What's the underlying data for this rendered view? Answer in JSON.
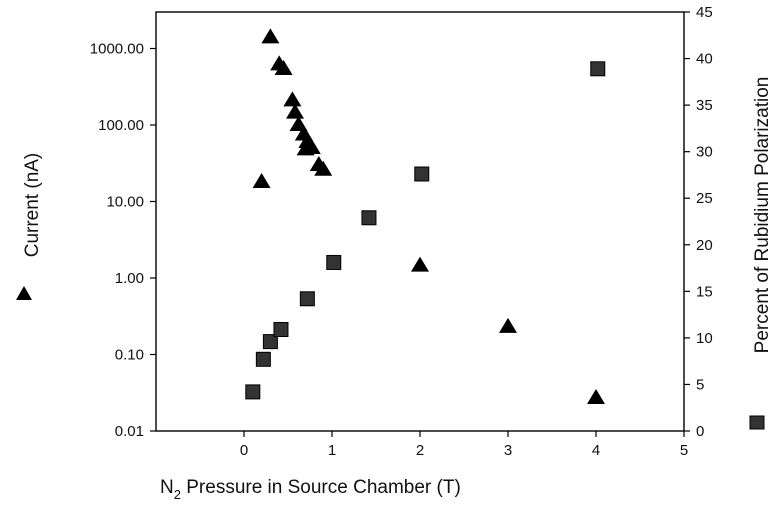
{
  "chart_data": {
    "type": "scatter",
    "title": "",
    "xlabel": "N",
    "xlabel_subscript": "2",
    "xlabel_rest": " Pressure in Source Chamber (T)",
    "ylabel_left": "Current (nA)",
    "ylabel_right": "Percent of Rubidium Polarization",
    "xlim": [
      -1,
      5
    ],
    "x_ticks": [
      0,
      1,
      2,
      3,
      4,
      5
    ],
    "x_tick_labels": [
      "0",
      "1",
      "2",
      "3",
      "4",
      "5"
    ],
    "y_left_scale": "log",
    "y_left_lim": [
      0.01,
      3000
    ],
    "y_left_ticks": [
      0.01,
      0.1,
      1,
      10,
      100,
      1000
    ],
    "y_left_tick_labels": [
      "0.01",
      "0.10",
      "1.00",
      "10.00",
      "100.00",
      "1000.00"
    ],
    "y_right_lim": [
      0,
      45
    ],
    "y_right_ticks": [
      0,
      5,
      10,
      15,
      20,
      25,
      30,
      35,
      40,
      45
    ],
    "y_right_tick_labels": [
      "0",
      "5",
      "10",
      "15",
      "20",
      "25",
      "30",
      "35",
      "40",
      "45"
    ],
    "grid": false,
    "legend": "markers beside axis titles: triangle = left axis, square = right axis",
    "series": [
      {
        "marker": "triangle",
        "axis": "left",
        "color": "#000000",
        "points": [
          {
            "x": 0.2,
            "y": 18
          },
          {
            "x": 0.3,
            "y": 1400
          },
          {
            "x": 0.4,
            "y": 620
          },
          {
            "x": 0.45,
            "y": 540
          },
          {
            "x": 0.55,
            "y": 210
          },
          {
            "x": 0.58,
            "y": 145
          },
          {
            "x": 0.62,
            "y": 100
          },
          {
            "x": 0.68,
            "y": 75
          },
          {
            "x": 0.72,
            "y": 60
          },
          {
            "x": 0.7,
            "y": 48
          },
          {
            "x": 0.77,
            "y": 50
          },
          {
            "x": 0.85,
            "y": 30
          },
          {
            "x": 0.9,
            "y": 26
          },
          {
            "x": 2.0,
            "y": 1.45
          },
          {
            "x": 3.0,
            "y": 0.23
          },
          {
            "x": 4.0,
            "y": 0.027
          }
        ]
      },
      {
        "marker": "square",
        "axis": "right",
        "color": "#333333",
        "points": [
          {
            "x": 0.1,
            "y": 4.2
          },
          {
            "x": 0.22,
            "y": 7.7
          },
          {
            "x": 0.3,
            "y": 9.6
          },
          {
            "x": 0.42,
            "y": 10.9
          },
          {
            "x": 0.72,
            "y": 14.2
          },
          {
            "x": 1.02,
            "y": 18.1
          },
          {
            "x": 1.42,
            "y": 22.9
          },
          {
            "x": 2.02,
            "y": 27.6
          },
          {
            "x": 4.02,
            "y": 38.9
          }
        ]
      }
    ]
  }
}
